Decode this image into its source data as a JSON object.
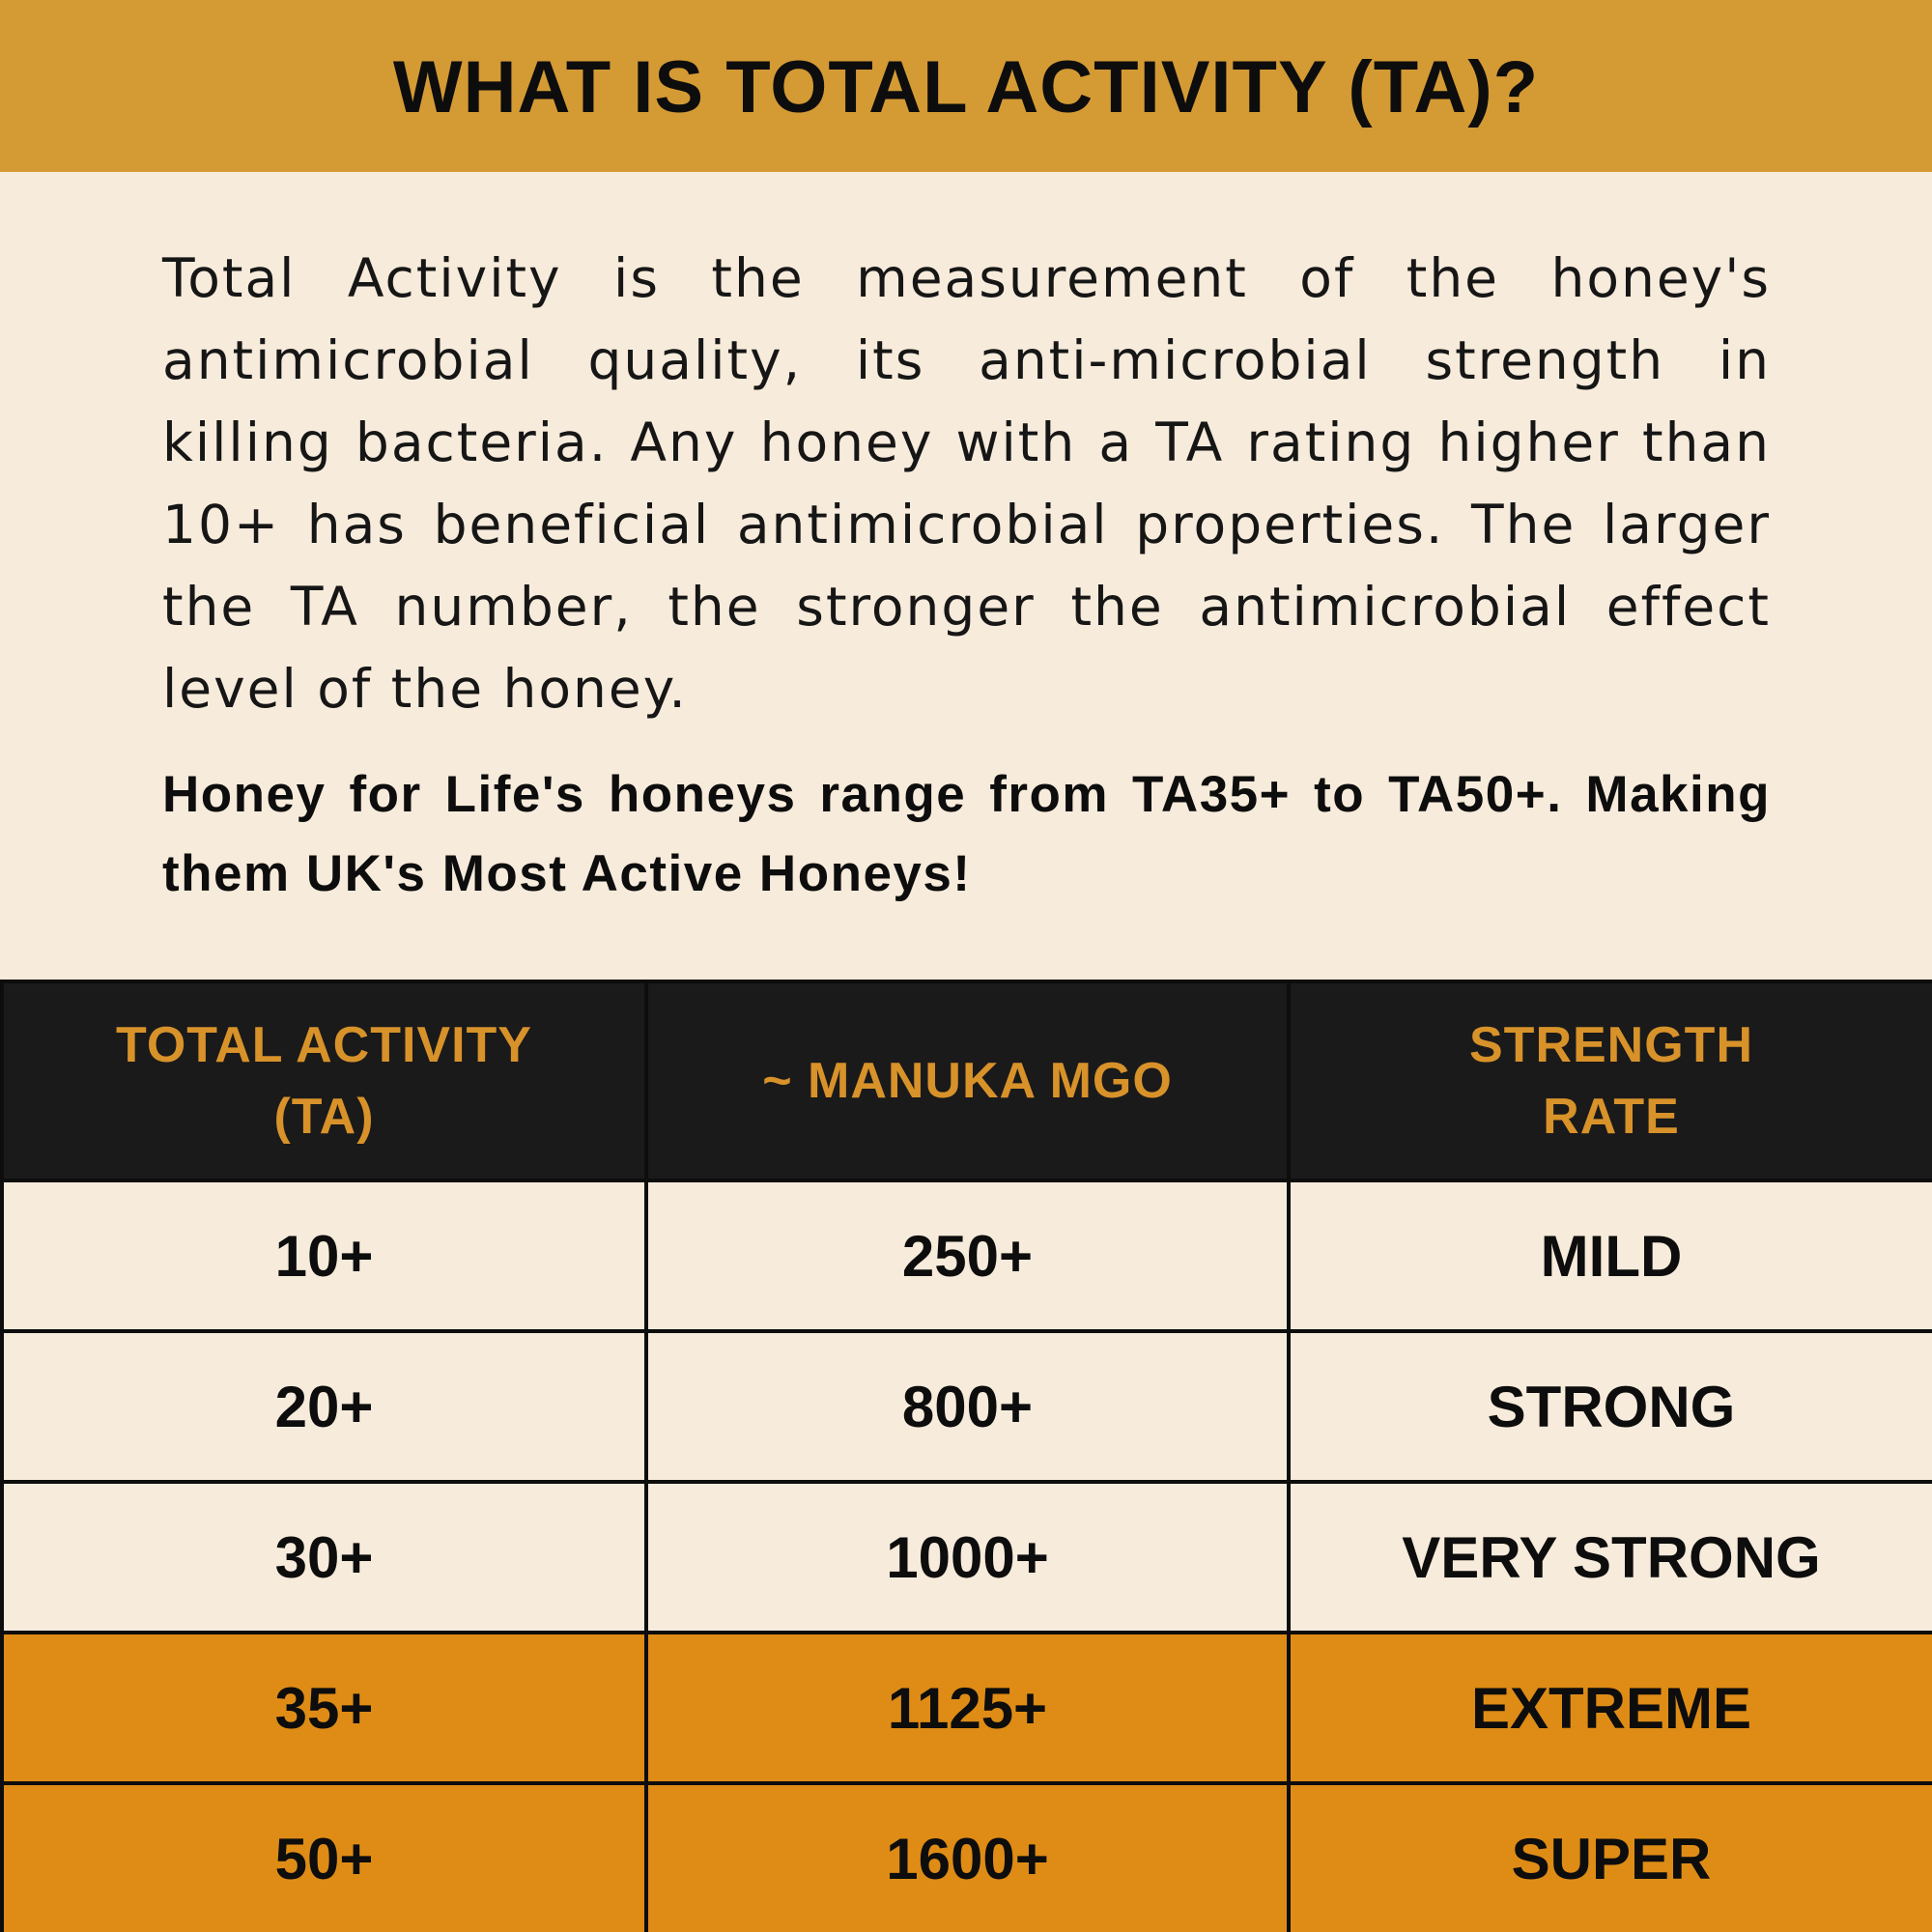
{
  "header": {
    "title": "WHAT IS TOTAL ACTIVITY (TA)?"
  },
  "intro": {
    "paragraph": "Total Activity is the measurement of the honey's antimicrobial quality, its anti-microbial strength in killing bacteria. Any honey with a TA rating higher than 10+ has beneficial antimicrobial properties. The larger the TA number, the stronger the antimicrobial effect level of the honey.",
    "highlight": "Honey for Life's honeys range from TA35+ to TA50+. Making them UK's Most Active Honeys!"
  },
  "table": {
    "headers": [
      {
        "line1": "TOTAL ACTIVITY",
        "line2": "(TA)"
      },
      {
        "line1": "~ MANUKA MGO",
        "line2": ""
      },
      {
        "line1": "STRENGTH",
        "line2": "RATE"
      }
    ],
    "rows": [
      {
        "ta": "10+",
        "mgo": "250+",
        "strength": "MILD",
        "highlighted": false
      },
      {
        "ta": "20+",
        "mgo": "800+",
        "strength": "STRONG",
        "highlighted": false
      },
      {
        "ta": "30+",
        "mgo": "1000+",
        "strength": "VERY STRONG",
        "highlighted": false
      },
      {
        "ta": "35+",
        "mgo": "1125+",
        "strength": "EXTREME",
        "highlighted": true
      },
      {
        "ta": "50+",
        "mgo": "1600+",
        "strength": "SUPER",
        "highlighted": true
      }
    ]
  },
  "colors": {
    "header_bg": "#d49a34",
    "page_bg": "#f7ebdb",
    "table_header_bg": "#1a1a1a",
    "table_header_text": "#d8922a",
    "highlight_row_bg": "#de8c16",
    "text": "#0d0d0d"
  }
}
